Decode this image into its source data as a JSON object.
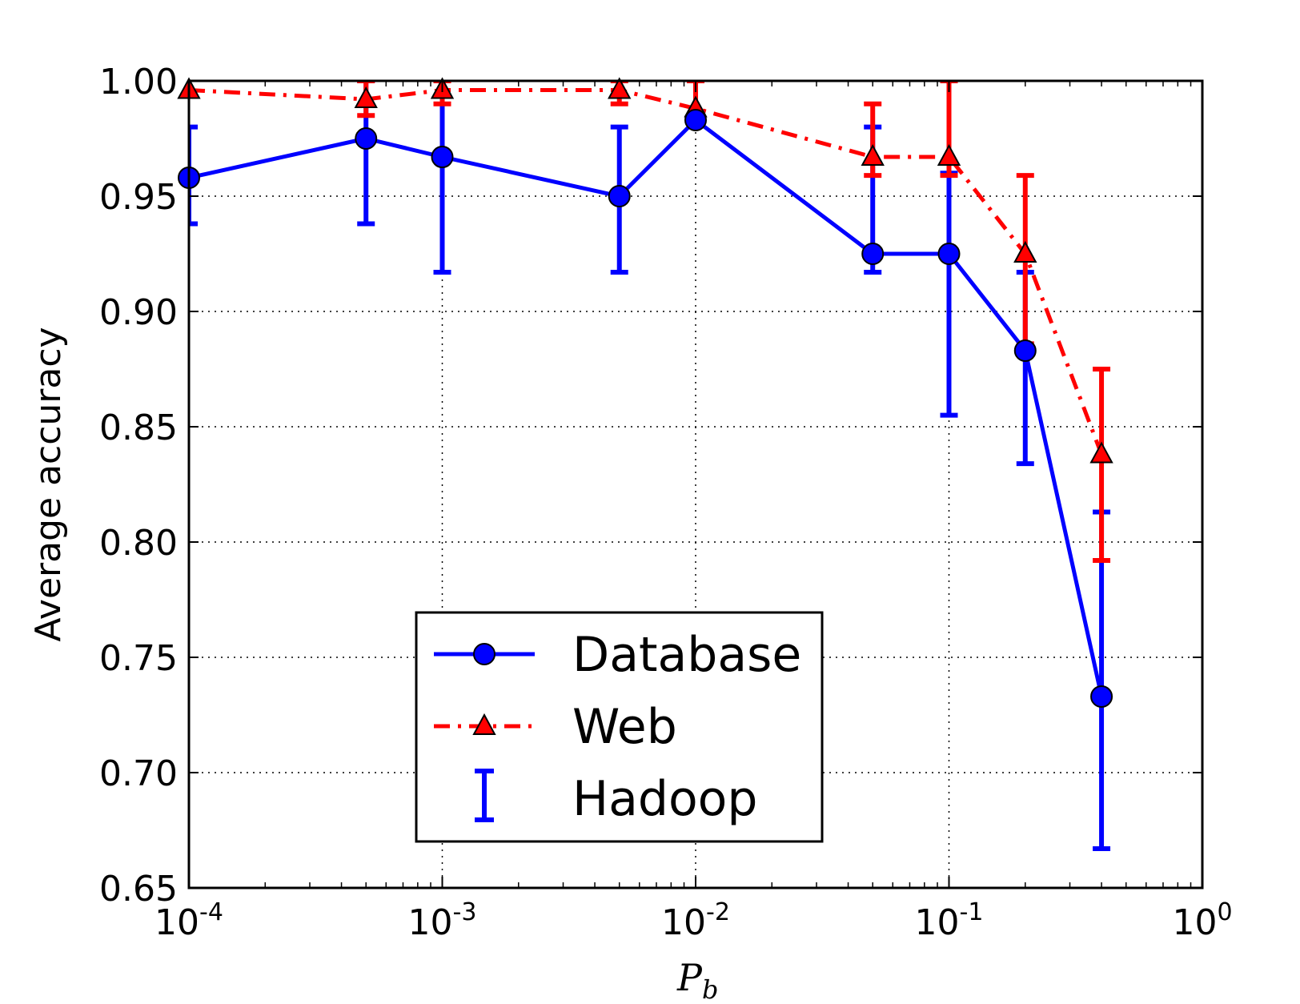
{
  "chart_data": {
    "type": "line",
    "title": "",
    "xlabel": "P",
    "xlabel_subscript": "b",
    "ylabel": "Average accuracy",
    "xscale": "log",
    "xlim": [
      0.0001,
      1
    ],
    "ylim": [
      0.65,
      1.0
    ],
    "grid": true,
    "legend_position": "lower-center",
    "x_ticks": [
      {
        "value": 0.0001,
        "base": "10",
        "exp": "-4"
      },
      {
        "value": 0.001,
        "base": "10",
        "exp": "-3"
      },
      {
        "value": 0.01,
        "base": "10",
        "exp": "-2"
      },
      {
        "value": 0.1,
        "base": "10",
        "exp": "-1"
      },
      {
        "value": 1,
        "base": "10",
        "exp": "0"
      }
    ],
    "y_ticks": [
      {
        "value": 0.65,
        "label": "0.65"
      },
      {
        "value": 0.7,
        "label": "0.70"
      },
      {
        "value": 0.75,
        "label": "0.75"
      },
      {
        "value": 0.8,
        "label": "0.80"
      },
      {
        "value": 0.85,
        "label": "0.85"
      },
      {
        "value": 0.9,
        "label": "0.90"
      },
      {
        "value": 0.95,
        "label": "0.95"
      },
      {
        "value": 1.0,
        "label": "1.00"
      }
    ],
    "series": [
      {
        "name": "Database",
        "color": "#0000ff",
        "line_style": "solid",
        "marker": "circle",
        "points": [
          {
            "x": 0.0001,
            "y": 0.958
          },
          {
            "x": 0.0005,
            "y": 0.975
          },
          {
            "x": 0.001,
            "y": 0.967
          },
          {
            "x": 0.005,
            "y": 0.95
          },
          {
            "x": 0.01,
            "y": 0.983
          },
          {
            "x": 0.05,
            "y": 0.925
          },
          {
            "x": 0.1,
            "y": 0.925
          },
          {
            "x": 0.2,
            "y": 0.883
          },
          {
            "x": 0.4,
            "y": 0.733
          }
        ]
      },
      {
        "name": "Web",
        "color": "#ff0000",
        "line_style": "dashdot",
        "marker": "triangle",
        "points": [
          {
            "x": 0.0001,
            "y": 0.996
          },
          {
            "x": 0.0005,
            "y": 0.992
          },
          {
            "x": 0.001,
            "y": 0.996
          },
          {
            "x": 0.005,
            "y": 0.996
          },
          {
            "x": 0.01,
            "y": 0.988
          },
          {
            "x": 0.05,
            "y": 0.967
          },
          {
            "x": 0.1,
            "y": 0.967
          },
          {
            "x": 0.2,
            "y": 0.925
          },
          {
            "x": 0.4,
            "y": 0.838
          }
        ]
      },
      {
        "name": "Hadoop",
        "color": "#0000ff",
        "line_style": "none",
        "marker": "errorbar",
        "points": []
      }
    ],
    "error_bars": [
      {
        "series": "Database",
        "color": "#0000ff",
        "bars": [
          {
            "x": 0.0001,
            "low": 0.938,
            "high": 0.98
          },
          {
            "x": 0.0005,
            "low": 0.938,
            "high": 1.0
          },
          {
            "x": 0.001,
            "low": 0.917,
            "high": 1.0
          },
          {
            "x": 0.005,
            "low": 0.917,
            "high": 0.98
          },
          {
            "x": 0.01,
            "low": 0.983,
            "high": 0.983
          },
          {
            "x": 0.05,
            "low": 0.917,
            "high": 0.98
          },
          {
            "x": 0.1,
            "low": 0.855,
            "high": 0.96
          },
          {
            "x": 0.2,
            "low": 0.834,
            "high": 0.917
          },
          {
            "x": 0.4,
            "low": 0.667,
            "high": 0.813
          }
        ]
      },
      {
        "series": "Web",
        "color": "#ff0000",
        "bars": [
          {
            "x": 0.0001,
            "low": 0.996,
            "high": 0.996
          },
          {
            "x": 0.0005,
            "low": 0.985,
            "high": 1.0
          },
          {
            "x": 0.001,
            "low": 0.99,
            "high": 1.0
          },
          {
            "x": 0.005,
            "low": 0.99,
            "high": 1.0
          },
          {
            "x": 0.01,
            "low": 0.985,
            "high": 1.0
          },
          {
            "x": 0.05,
            "low": 0.959,
            "high": 0.99
          },
          {
            "x": 0.1,
            "low": 0.959,
            "high": 1.0
          },
          {
            "x": 0.2,
            "low": 0.886,
            "high": 0.959
          },
          {
            "x": 0.4,
            "low": 0.792,
            "high": 0.875
          }
        ]
      }
    ]
  }
}
